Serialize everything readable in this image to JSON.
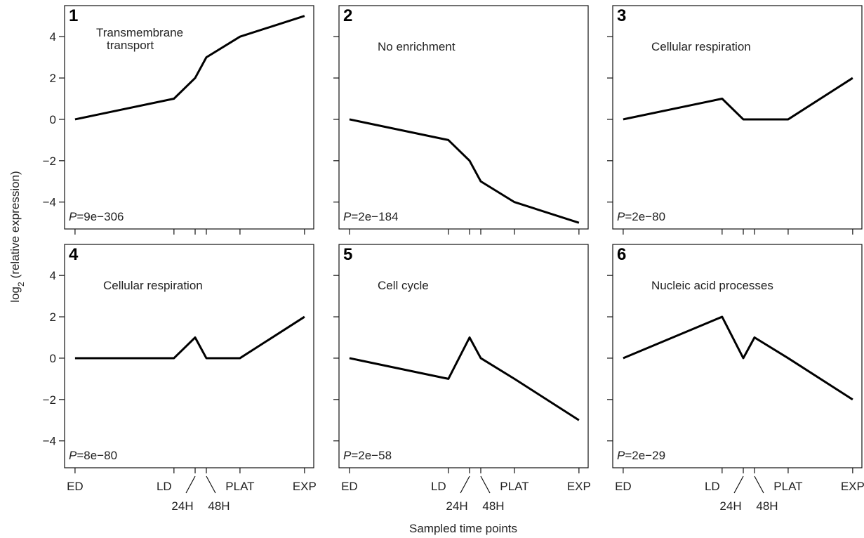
{
  "axes": {
    "categories": [
      "ED",
      "LD",
      "24H",
      "48H",
      "PLAT",
      "EXP"
    ],
    "ylim": [
      -5.3,
      5.5
    ],
    "yticks": [
      {
        "value": -4,
        "label": "−4"
      },
      {
        "value": -2,
        "label": "−2"
      },
      0,
      2,
      4
    ],
    "x_label": "Sampled time points",
    "y_label": {
      "text": "log",
      "subscript": "2",
      "rest": "(relative expression)"
    }
  },
  "chart_data": [
    {
      "type": "line",
      "title": "1",
      "annotation": [
        "Transmembrane",
        "transport"
      ],
      "p_symbol": "P",
      "p_text": "=9e−306",
      "color": "#000000",
      "values": [
        0,
        1,
        2,
        3,
        4,
        5
      ]
    },
    {
      "type": "line",
      "title": "2",
      "annotation": [
        "No enrichment"
      ],
      "p_symbol": "P",
      "p_text": "=2e−184",
      "color": "#000000",
      "values": [
        0,
        -1,
        -2,
        -3,
        -4,
        -5
      ]
    },
    {
      "type": "line",
      "title": "3",
      "annotation": [
        "Cellular respiration"
      ],
      "p_symbol": "P",
      "p_text": "=2e−80",
      "color": "#000000",
      "values": [
        0,
        1,
        0,
        0,
        0,
        2
      ]
    },
    {
      "type": "line",
      "title": "4",
      "annotation": [
        "Cellular respiration"
      ],
      "p_symbol": "P",
      "p_text": "=8e−80",
      "color": "#000000",
      "values": [
        0,
        0,
        1,
        0,
        0,
        2
      ]
    },
    {
      "type": "line",
      "title": "5",
      "annotation": [
        "Cell cycle"
      ],
      "p_symbol": "P",
      "p_text": "=2e−58",
      "color": "#000000",
      "values": [
        0,
        -1,
        1,
        0,
        -1,
        -3
      ]
    },
    {
      "type": "line",
      "title": "6",
      "annotation": [
        "Nucleic acid processes"
      ],
      "p_symbol": "P",
      "p_text": "=2e−29",
      "color": "#000000",
      "values": [
        0,
        2,
        0,
        1,
        0,
        -2
      ]
    }
  ]
}
